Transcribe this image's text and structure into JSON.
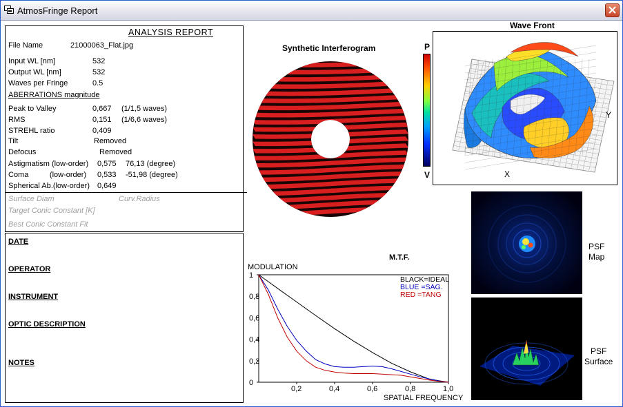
{
  "window": {
    "title": "AtmosFringe  Report"
  },
  "report": {
    "heading": "ANALYSIS  REPORT",
    "file_name_label": "File Name",
    "file_name_value": "21000063_Flat.jpg",
    "input_wl_label": "Input  WL [nm]",
    "input_wl_value": "532",
    "output_wl_label": "Output WL [nm]",
    "output_wl_value": "532",
    "waves_per_fringe_label": "Waves per Fringe",
    "waves_per_fringe_value": "0.5",
    "aberrations_heading": "ABERRATIONS magnitude",
    "ptv_label": "Peak to Valley",
    "ptv_value": "0,667",
    "ptv_waves": "(1/1,5 waves)",
    "rms_label": "RMS",
    "rms_value": "0,151",
    "rms_waves": "(1/6,6 waves)",
    "strehl_label": "STREHL ratio",
    "strehl_value": "0,409",
    "tilt_label": "Tilt",
    "tilt_value": "Removed",
    "defocus_label": "Defocus",
    "defocus_value": "Removed",
    "astig_label": "Astigmatism  (low-order)",
    "astig_value": "0,575",
    "astig_angle": "76,13  (degree)",
    "coma_label": "Coma          (low-order)",
    "coma_value": "0,533",
    "coma_angle": "-51,98  (degree)",
    "spherical_label": "Spherical Ab.(low-order)",
    "spherical_value": "0,649",
    "surface_diam_label": "Surface Diam",
    "curv_radius_label": "Curv.Radius",
    "target_conic_label": "Target Conic Constant [K]",
    "best_conic_label": "Best Conic Constant Fit"
  },
  "info": {
    "date_label": "DATE",
    "operator_label": "OPERATOR",
    "instrument_label": "INSTRUMENT",
    "optic_description_label": "OPTIC DESCRIPTION",
    "notes_label": "NOTES"
  },
  "interferogram": {
    "title": "Synthetic Interferogram",
    "fringe_count": 22,
    "obstruction_ratio": 0.28,
    "fringe_color": "#d81e1e"
  },
  "colorbar": {
    "top_label": "P",
    "bottom_label": "V"
  },
  "wavefront": {
    "title": "Wave Front",
    "x_label": "X",
    "y_label": "Y"
  },
  "psf": {
    "map_label": "PSF\nMap",
    "surface_label": "PSF\nSurface"
  },
  "chart_data": {
    "type": "line",
    "title": "M.T.F.",
    "ylabel": "MODULATION",
    "xlabel": "SPATIAL FREQUENCY",
    "xlim": [
      0,
      1
    ],
    "ylim": [
      0,
      1
    ],
    "x_ticks": [
      "0,2",
      "0,4",
      "0,6",
      "0,8",
      "1,0"
    ],
    "y_ticks": [
      "0",
      "0,2",
      "0,4",
      "0,6",
      "0,8",
      "1"
    ],
    "legend": [
      "BLACK=IDEAL",
      "BLUE  =SAG.",
      "RED    =TANG"
    ],
    "series": [
      {
        "color": "#000000",
        "x": [
          0,
          0.1,
          0.2,
          0.3,
          0.4,
          0.5,
          0.6,
          0.7,
          0.8,
          0.9,
          1.0
        ],
        "y": [
          1.0,
          0.873,
          0.747,
          0.621,
          0.498,
          0.383,
          0.276,
          0.177,
          0.096,
          0.028,
          0.0
        ]
      },
      {
        "color": "#0000c0",
        "x": [
          0,
          0.05,
          0.1,
          0.15,
          0.2,
          0.25,
          0.3,
          0.35,
          0.4,
          0.45,
          0.5,
          0.55,
          0.6,
          0.65,
          0.7,
          0.75,
          0.8,
          0.85,
          0.9,
          0.95,
          1.0
        ],
        "y": [
          1.0,
          0.86,
          0.68,
          0.52,
          0.39,
          0.29,
          0.21,
          0.17,
          0.145,
          0.14,
          0.14,
          0.145,
          0.15,
          0.145,
          0.125,
          0.1,
          0.075,
          0.05,
          0.03,
          0.012,
          0.0
        ]
      },
      {
        "color": "#c00000",
        "x": [
          0,
          0.05,
          0.1,
          0.15,
          0.2,
          0.25,
          0.3,
          0.35,
          0.4,
          0.45,
          0.5,
          0.55,
          0.6,
          0.65,
          0.7,
          0.75,
          0.8,
          0.85,
          0.9,
          0.95,
          1.0
        ],
        "y": [
          1.0,
          0.82,
          0.6,
          0.42,
          0.29,
          0.2,
          0.14,
          0.11,
          0.095,
          0.085,
          0.08,
          0.08,
          0.08,
          0.075,
          0.07,
          0.065,
          0.05,
          0.035,
          0.02,
          0.008,
          0.0
        ]
      }
    ]
  }
}
